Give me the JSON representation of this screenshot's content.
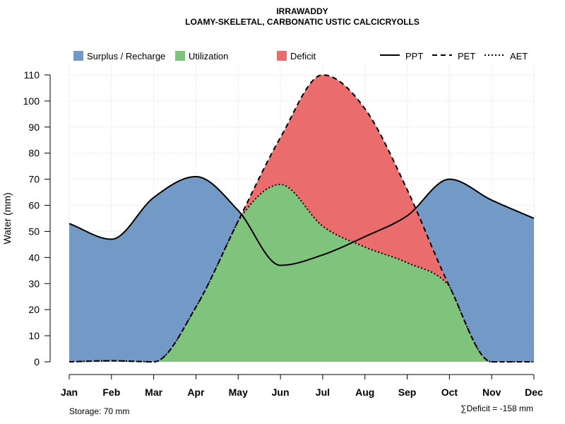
{
  "chart_data": {
    "type": "area",
    "title": "IRRAWADDY",
    "subtitle": "LOAMY-SKELETAL, CARBONATIC USTIC CALCICRYOLLS",
    "ylabel": "Water (mm)",
    "xlabel": "",
    "ylim": [
      0,
      110
    ],
    "yticks": [
      0,
      10,
      20,
      30,
      40,
      50,
      60,
      70,
      80,
      90,
      100,
      110
    ],
    "categories": [
      "Jan",
      "Feb",
      "Mar",
      "Apr",
      "May",
      "Jun",
      "Jul",
      "Aug",
      "Sep",
      "Oct",
      "Nov",
      "Dec"
    ],
    "series": [
      {
        "name": "PPT",
        "style": "solid",
        "values": [
          53,
          47,
          63,
          71,
          58,
          37,
          41,
          48,
          56,
          70,
          62,
          55
        ]
      },
      {
        "name": "PET",
        "style": "dashed",
        "values": [
          0,
          0.4,
          0,
          21,
          54,
          86,
          110,
          97,
          66,
          29,
          0,
          0
        ]
      },
      {
        "name": "AET",
        "style": "dotted",
        "values": [
          0,
          0.4,
          0,
          21,
          54,
          68,
          52,
          44,
          38,
          29,
          0,
          0
        ]
      }
    ],
    "fills": [
      {
        "name": "Surplus / Recharge",
        "color": "#7399c6"
      },
      {
        "name": "Utilization",
        "color": "#80c37d"
      },
      {
        "name": "Deficit",
        "color": "#ea6c6d"
      }
    ],
    "grid": true,
    "legend": "top"
  },
  "notes": {
    "storage": "Storage: 70 mm",
    "deficit": "∑Deficit = -158 mm"
  }
}
